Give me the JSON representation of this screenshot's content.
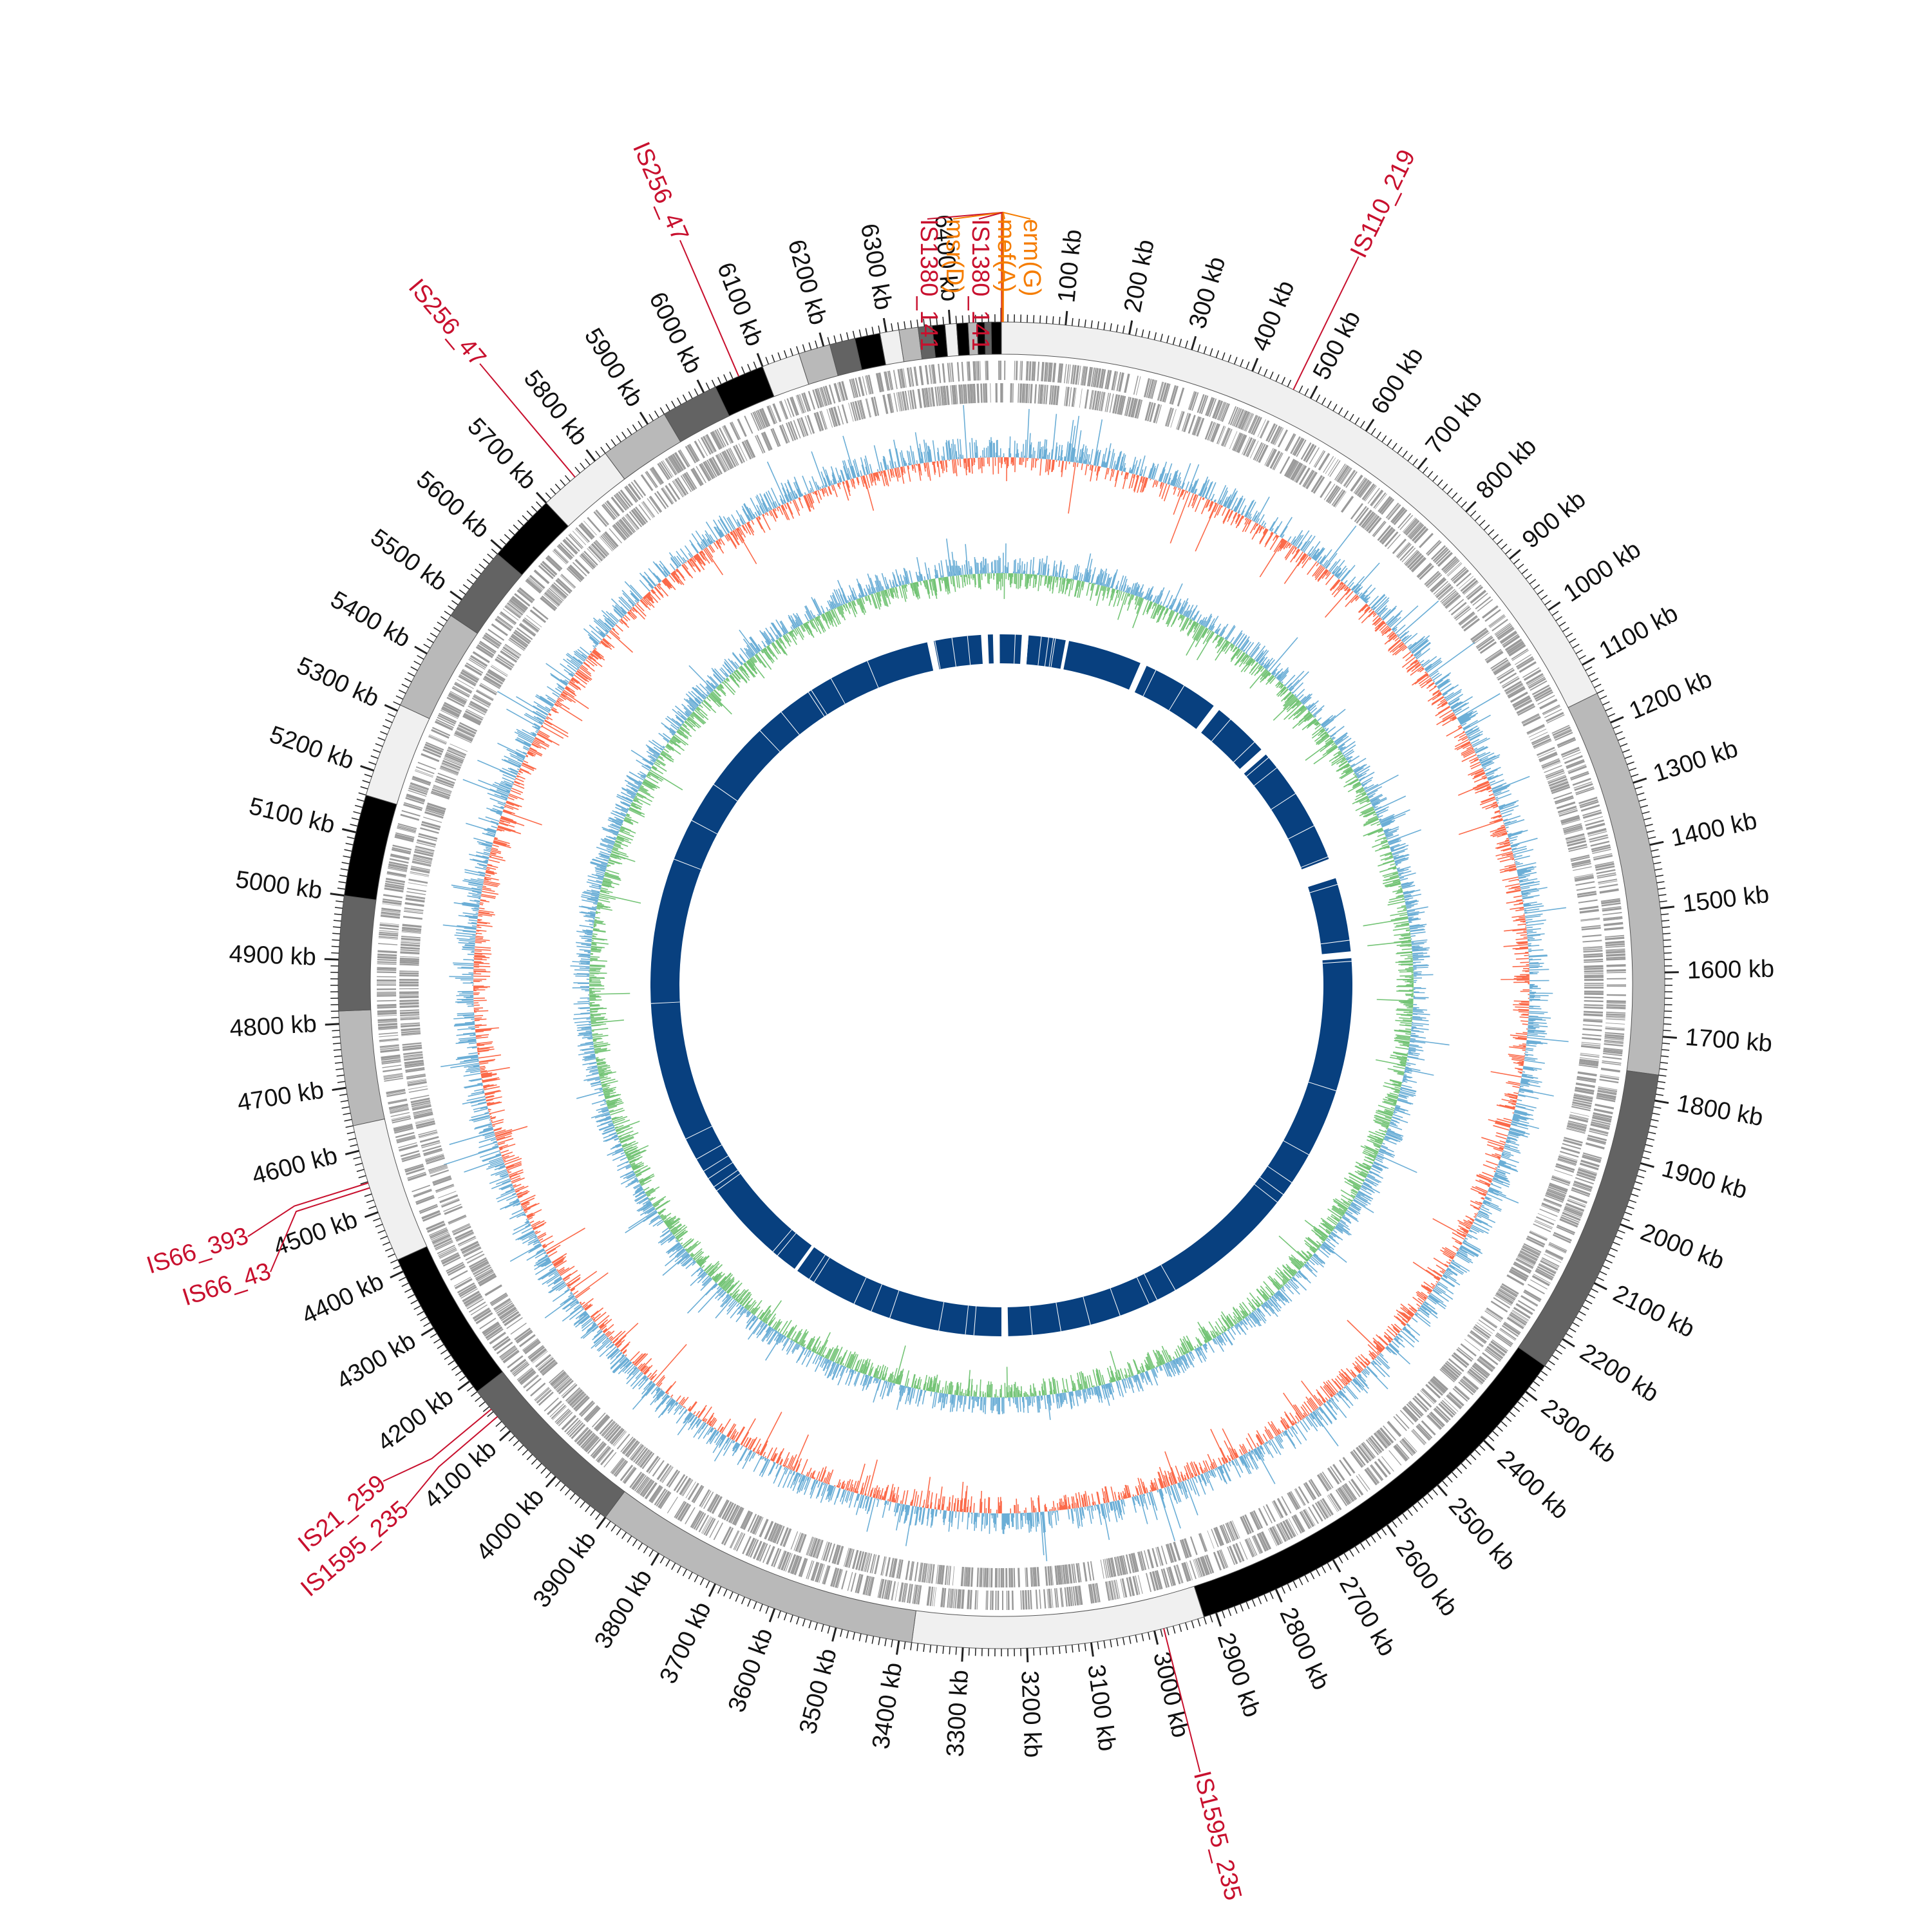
{
  "genome": {
    "length_kb": 6480,
    "tick_labels": [
      "100 kb",
      "200 kb",
      "300 kb",
      "400 kb",
      "500 kb",
      "600 kb",
      "700 kb",
      "800 kb",
      "900 kb",
      "1000 kb",
      "1100 kb",
      "1200 kb",
      "1300 kb",
      "1400 kb",
      "1500 kb",
      "1600 kb",
      "1700 kb",
      "1800 kb",
      "1900 kb",
      "2000 kb",
      "2100 kb",
      "2200 kb",
      "2300 kb",
      "2400 kb",
      "2500 kb",
      "2600 kb",
      "2700 kb",
      "2800 kb",
      "2900 kb",
      "3000 kb",
      "3100 kb",
      "3200 kb",
      "3300 kb",
      "3400 kb",
      "3500 kb",
      "3600 kb",
      "3700 kb",
      "3800 kb",
      "3900 kb",
      "4000 kb",
      "4100 kb",
      "4200 kb",
      "4300 kb",
      "4400 kb",
      "4500 kb",
      "4600 kb",
      "4700 kb",
      "4800 kb",
      "4900 kb",
      "5000 kb",
      "5100 kb",
      "5200 kb",
      "5300 kb",
      "5400 kb",
      "5500 kb",
      "5600 kb",
      "5700 kb",
      "5800 kb",
      "5900 kb",
      "6000 kb",
      "6100 kb",
      "6200 kb",
      "6300 kb",
      "6400 kb"
    ]
  },
  "contig_blocks": [
    {
      "start": 0,
      "end": 1150,
      "color": "#f0f0f0"
    },
    {
      "start": 1150,
      "end": 1760,
      "color": "#b9b9b9"
    },
    {
      "start": 1760,
      "end": 2250,
      "color": "#636363"
    },
    {
      "start": 2250,
      "end": 2920,
      "color": "#000000"
    },
    {
      "start": 2920,
      "end": 3380,
      "color": "#f0f0f0"
    },
    {
      "start": 3380,
      "end": 3900,
      "color": "#b9b9b9"
    },
    {
      "start": 3900,
      "end": 4180,
      "color": "#636363"
    },
    {
      "start": 4180,
      "end": 4420,
      "color": "#000000"
    },
    {
      "start": 4420,
      "end": 4640,
      "color": "#f0f0f0"
    },
    {
      "start": 4640,
      "end": 4820,
      "color": "#b9b9b9"
    },
    {
      "start": 4820,
      "end": 5000,
      "color": "#636363"
    },
    {
      "start": 5000,
      "end": 5160,
      "color": "#000000"
    },
    {
      "start": 5160,
      "end": 5310,
      "color": "#f0f0f0"
    },
    {
      "start": 5310,
      "end": 5470,
      "color": "#b9b9b9"
    },
    {
      "start": 5470,
      "end": 5590,
      "color": "#636363"
    },
    {
      "start": 5590,
      "end": 5700,
      "color": "#000000"
    },
    {
      "start": 5700,
      "end": 5820,
      "color": "#f0f0f0"
    },
    {
      "start": 5820,
      "end": 5930,
      "color": "#b9b9b9"
    },
    {
      "start": 5930,
      "end": 6020,
      "color": "#636363"
    },
    {
      "start": 6020,
      "end": 6100,
      "color": "#000000"
    },
    {
      "start": 6100,
      "end": 6160,
      "color": "#f0f0f0"
    },
    {
      "start": 6160,
      "end": 6210,
      "color": "#b9b9b9"
    },
    {
      "start": 6210,
      "end": 6250,
      "color": "#636363"
    },
    {
      "start": 6250,
      "end": 6290,
      "color": "#000000"
    },
    {
      "start": 6290,
      "end": 6320,
      "color": "#f0f0f0"
    },
    {
      "start": 6320,
      "end": 6350,
      "color": "#b9b9b9"
    },
    {
      "start": 6350,
      "end": 6372,
      "color": "#636363"
    },
    {
      "start": 6372,
      "end": 6392,
      "color": "#000000"
    },
    {
      "start": 6392,
      "end": 6410,
      "color": "#f0f0f0"
    },
    {
      "start": 6410,
      "end": 6428,
      "color": "#000000"
    },
    {
      "start": 6428,
      "end": 6442,
      "color": "#b9b9b9"
    },
    {
      "start": 6442,
      "end": 6454,
      "color": "#000000"
    },
    {
      "start": 6454,
      "end": 6464,
      "color": "#636363"
    },
    {
      "start": 6464,
      "end": 6480,
      "color": "#000000"
    }
  ],
  "mge_labels": [
    {
      "text": "IS1380_141",
      "pos": 0.3,
      "color": "#c8102e"
    },
    {
      "text": "msr(D)",
      "pos": 1.0,
      "color": "#f57c00"
    },
    {
      "text": "IS1380_141",
      "pos": 1.6,
      "color": "#c8102e"
    },
    {
      "text": "mef(A)",
      "pos": 2.2,
      "color": "#f57c00"
    },
    {
      "text": "erm(G)",
      "pos": 2.8,
      "color": "#f57c00"
    },
    {
      "text": "IS110_219",
      "pos": 470,
      "color": "#c8102e"
    },
    {
      "text": "IS1595_235",
      "pos": 2985,
      "color": "#c8102e"
    },
    {
      "text": "IS1595_235",
      "pos": 4130,
      "color": "#c8102e"
    },
    {
      "text": "IS21_259",
      "pos": 4145,
      "color": "#c8102e"
    },
    {
      "text": "IS66_43",
      "pos": 4540,
      "color": "#c8102e"
    },
    {
      "text": "IS66_393",
      "pos": 4548,
      "color": "#c8102e"
    },
    {
      "text": "IS256_47",
      "pos": 5760,
      "color": "#c8102e"
    },
    {
      "text": "IS256_47",
      "pos": 6060,
      "color": "#c8102e"
    }
  ],
  "tracks": [
    {
      "name": "CDS (forward/reverse strands)",
      "color": "#9a9a9a"
    },
    {
      "name": "GC content",
      "color_above": "#6baed6",
      "color_below": "#fb6a4a"
    },
    {
      "name": "GC skew",
      "color_above": "#6baed6",
      "color_below": "#74c476"
    },
    {
      "name": "Reference coverage",
      "color": "#08407f"
    }
  ],
  "coverage_gaps": [
    [
      60,
      80
    ],
    [
      190,
      200
    ],
    [
      420,
      440
    ],
    [
      670,
      690
    ],
    [
      860,
      880
    ],
    [
      1240,
      1300
    ],
    [
      1520,
      1540
    ],
    [
      3220,
      3240
    ],
    [
      3880,
      3890
    ],
    [
      6260,
      6280
    ],
    [
      6420,
      6440
    ],
    [
      6455,
      6475
    ]
  ]
}
